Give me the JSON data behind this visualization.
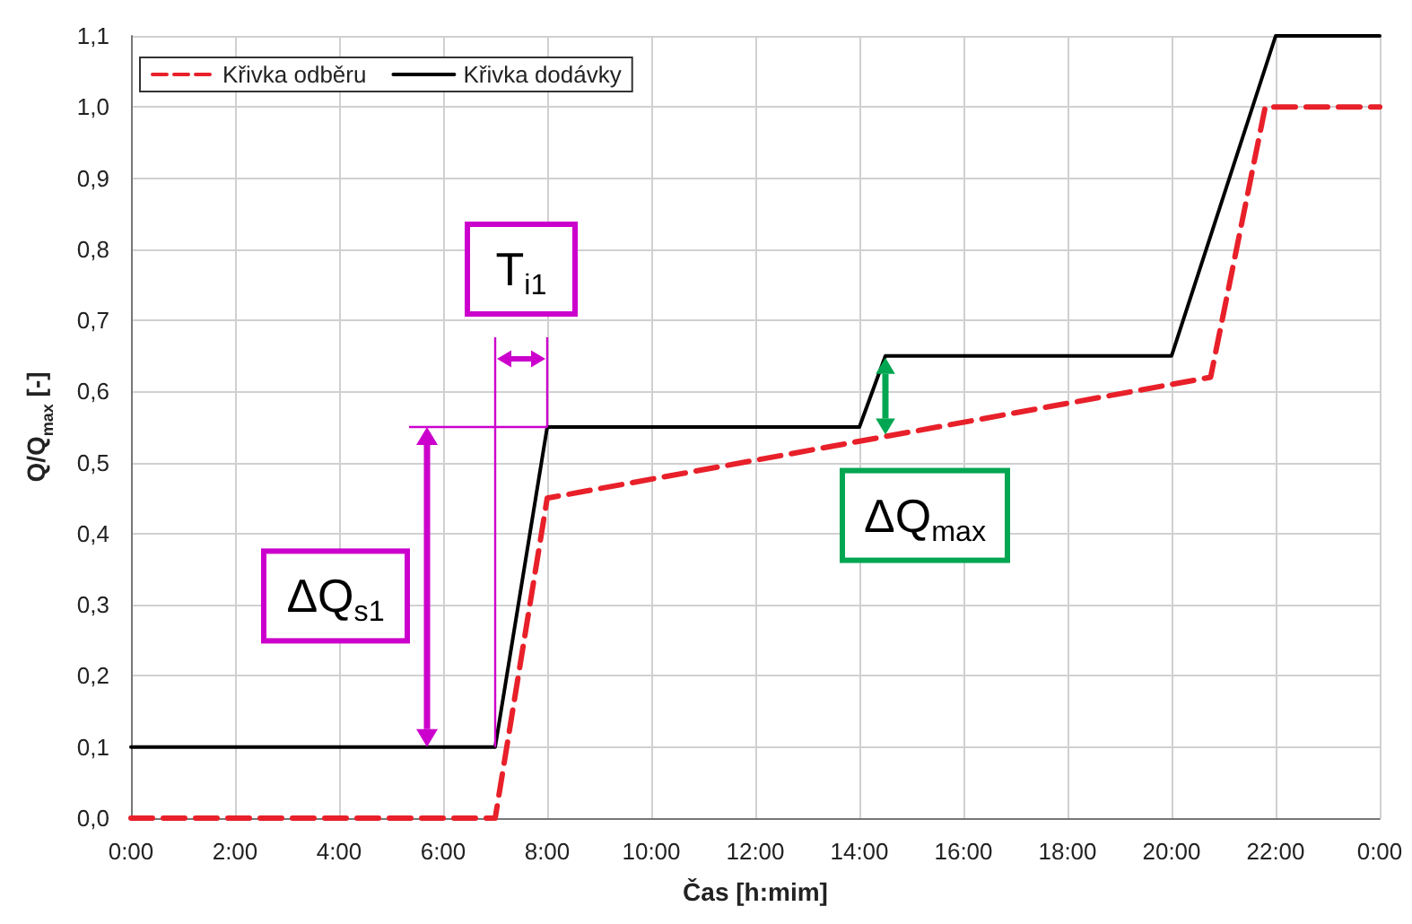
{
  "chart_data": {
    "type": "line",
    "xlabel": "Čas [h:mim]",
    "ylabel": "Q/Q$_{max}$ [-]",
    "xlim": [
      0,
      24
    ],
    "xticks": [
      {
        "value": 0,
        "label": "0:00"
      },
      {
        "value": 2,
        "label": "2:00"
      },
      {
        "value": 4,
        "label": "4:00"
      },
      {
        "value": 6,
        "label": "6:00"
      },
      {
        "value": 8,
        "label": "8:00"
      },
      {
        "value": 10,
        "label": "10:00"
      },
      {
        "value": 12,
        "label": "12:00"
      },
      {
        "value": 14,
        "label": "14:00"
      },
      {
        "value": 16,
        "label": "16:00"
      },
      {
        "value": 18,
        "label": "18:00"
      },
      {
        "value": 20,
        "label": "20:00"
      },
      {
        "value": 22,
        "label": "22:00"
      },
      {
        "value": 24,
        "label": "0:00"
      }
    ],
    "ylim": [
      0,
      1.1
    ],
    "yticks": [
      {
        "value": 0,
        "label": "0,0"
      },
      {
        "value": 0.1,
        "label": "0,1"
      },
      {
        "value": 0.2,
        "label": "0,2"
      },
      {
        "value": 0.3,
        "label": "0,3"
      },
      {
        "value": 0.4,
        "label": "0,4"
      },
      {
        "value": 0.5,
        "label": "0,5"
      },
      {
        "value": 0.6,
        "label": "0,6"
      },
      {
        "value": 0.7,
        "label": "0,7"
      },
      {
        "value": 0.8,
        "label": "0,8"
      },
      {
        "value": 0.9,
        "label": "0,9"
      },
      {
        "value": 1.0,
        "label": "1,0"
      },
      {
        "value": 1.1,
        "label": "1,1"
      }
    ],
    "grid": true,
    "legend": "top left",
    "marker": "none",
    "series": [
      {
        "name": "Křivka odběru",
        "color": "#e8202a",
        "line_style": "dashed",
        "x": [
          0,
          7,
          8,
          20.75,
          21.8,
          24
        ],
        "values": [
          0,
          0,
          0.45,
          0.62,
          1.0,
          1.0
        ]
      },
      {
        "name": "Křivka dodávky",
        "color": "#000000",
        "line_style": "solid",
        "x": [
          0,
          7,
          8,
          14,
          14.5,
          20,
          22,
          24
        ],
        "values": [
          0.1,
          0.1,
          0.55,
          0.55,
          0.65,
          0.65,
          1.1,
          1.1
        ]
      }
    ],
    "annotations": [
      {
        "text": "T$_{i1}$",
        "x": 7,
        "y": 0.1
      },
      "ΔQ$_{s1}$",
      "ΔQ$_{max}$"
    ]
  }
}
